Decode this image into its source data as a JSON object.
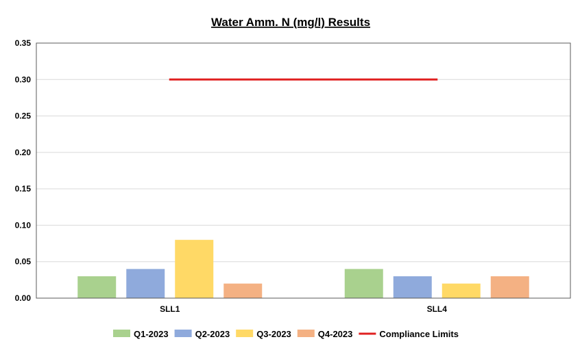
{
  "chart_data": {
    "type": "bar",
    "title": "Water Amm. N (mg/l) Results",
    "xlabel": "",
    "ylabel": "",
    "categories": [
      "SLL1",
      "SLL4"
    ],
    "series": [
      {
        "name": "Q1-2023",
        "color": "#a9d18e",
        "values": [
          0.03,
          0.04
        ]
      },
      {
        "name": "Q2-2023",
        "color": "#8faadc",
        "values": [
          0.04,
          0.03
        ]
      },
      {
        "name": "Q3-2023",
        "color": "#ffd966",
        "values": [
          0.08,
          0.02
        ]
      },
      {
        "name": "Q4-2023",
        "color": "#f4b183",
        "values": [
          0.02,
          0.03
        ]
      }
    ],
    "reference_line": {
      "name": "Compliance Limits",
      "value": 0.3,
      "color": "#e02020",
      "span_categories": [
        "SLL1",
        "SLL4"
      ]
    },
    "ylim": [
      0,
      0.35
    ],
    "yticks": [
      "0.00",
      "0.05",
      "0.10",
      "0.15",
      "0.20",
      "0.25",
      "0.30",
      "0.35"
    ],
    "grid": true,
    "legend_position": "bottom"
  }
}
